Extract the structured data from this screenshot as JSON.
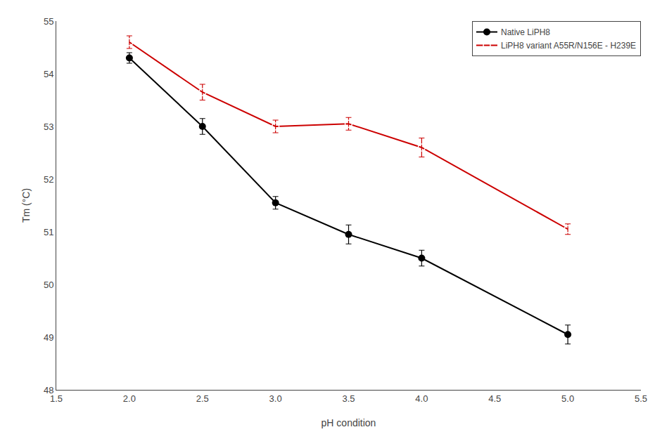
{
  "chart_data": {
    "type": "line",
    "x_label": "pH condition",
    "y_label": "Tm (°C)",
    "series": [
      {
        "name": "Native LiPH8",
        "color": "#000000",
        "marker": "circle",
        "x": [
          2.0,
          2.5,
          3.0,
          3.5,
          4.0,
          5.0
        ],
        "values": [
          54.3,
          53.0,
          51.55,
          50.95,
          50.5,
          49.05
        ],
        "errors": [
          0.1,
          0.15,
          0.12,
          0.18,
          0.15,
          0.18
        ]
      },
      {
        "name": "LiPH8 variant A55R/N156E - H239E",
        "color": "#cc0000",
        "marker": "circle-open",
        "x": [
          2.0,
          2.5,
          3.0,
          3.5,
          4.0,
          5.0
        ],
        "values": [
          54.6,
          53.65,
          53.0,
          53.05,
          52.6,
          51.05
        ],
        "errors": [
          0.12,
          0.15,
          0.12,
          0.12,
          0.18,
          0.1
        ]
      }
    ],
    "xlim": [
      1.5,
      5.5
    ],
    "ylim": [
      48,
      55
    ],
    "xticks": [
      1.5,
      {
        "value": 2.0,
        "label": "2.0"
      },
      2.5,
      {
        "value": 3.0,
        "label": "3.0"
      },
      3.5,
      {
        "value": 4.0,
        "label": "4.0"
      },
      4.5,
      {
        "value": 5.0,
        "label": "5.0"
      },
      5.5
    ],
    "yticks": [
      48,
      49,
      50,
      51,
      52,
      53,
      54,
      55
    ],
    "grid": false,
    "legend": "upper right"
  }
}
